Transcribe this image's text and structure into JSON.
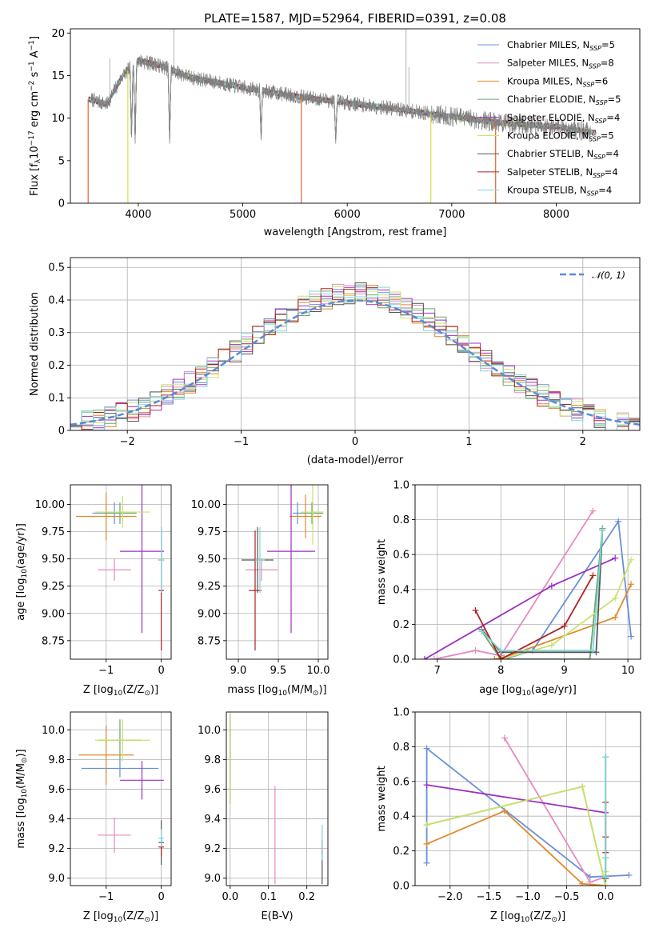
{
  "figure": {
    "title": "PLATE=1587, MJD=52964, FIBERID=0391, z=0.08"
  },
  "colors": {
    "Chabrier MILES": "#6a8fd8",
    "Salpeter MILES": "#e58ac0",
    "Kroupa MILES": "#e08a2a",
    "Chabrier ELODIE": "#6aa66a",
    "Salpeter ELODIE": "#9b30c0",
    "Kroupa ELODIE": "#c9e36a",
    "Chabrier STELIB": "#555555",
    "Salpeter STELIB": "#b22020",
    "Kroupa STELIB": "#80d8d8",
    "spectrum_main": "#808080",
    "spectrum_orange": "#e0662a",
    "spectrum_yellow": "#d8e04a",
    "normal_curve": "#5a8ad8"
  },
  "chart_data": [
    {
      "id": "spectrum",
      "type": "line",
      "xlabel": "wavelength [Angstrom, rest frame]",
      "ylabel_parts": [
        "Flux [f",
        "λ",
        "10",
        "−17",
        " erg cm",
        "−2",
        " s",
        "−1",
        " A",
        "−1",
        "]"
      ],
      "xlim": [
        3350,
        8800
      ],
      "ylim": [
        0,
        20.5
      ],
      "xticks": [
        4000,
        5000,
        6000,
        7000,
        8000
      ],
      "yticks": [
        0,
        5,
        10,
        15,
        20
      ],
      "grid": false,
      "legend_position": "top-right",
      "legend": [
        {
          "name": "Chabrier MILES",
          "nssp": "5"
        },
        {
          "name": "Salpeter MILES",
          "nssp": "8"
        },
        {
          "name": "Kroupa MILES",
          "nssp": "6"
        },
        {
          "name": "Chabrier ELODIE",
          "nssp": "5"
        },
        {
          "name": "Salpeter ELODIE",
          "nssp": "4"
        },
        {
          "name": "Kroupa ELODIE",
          "nssp": "5"
        },
        {
          "name": "Chabrier STELIB",
          "nssp": "4"
        },
        {
          "name": "Salpeter STELIB",
          "nssp": "4"
        },
        {
          "name": "Kroupa STELIB",
          "nssp": "4"
        }
      ],
      "continuum_knots": [
        [
          3550,
          12.2
        ],
        [
          3700,
          11.6
        ],
        [
          3850,
          15.0
        ],
        [
          4000,
          16.8
        ],
        [
          4200,
          16.2
        ],
        [
          4500,
          14.8
        ],
        [
          5000,
          13.6
        ],
        [
          5500,
          12.6
        ],
        [
          6000,
          11.8
        ],
        [
          6500,
          11.0
        ],
        [
          7000,
          10.2
        ],
        [
          7500,
          9.4
        ],
        [
          8000,
          9.0
        ],
        [
          8400,
          8.2
        ]
      ],
      "models_range": [
        3520,
        8380
      ],
      "observed_range": [
        3550,
        8330
      ],
      "model_dropouts": [
        3520,
        3900,
        5560,
        6800,
        7420
      ],
      "emission_lines": [
        [
          4340,
          20.5
        ],
        [
          6563,
          20.5
        ],
        [
          6590,
          16.0
        ],
        [
          3727,
          17.0
        ]
      ],
      "absorption_features": [
        [
          3935,
          7.2
        ],
        [
          3970,
          8.0
        ],
        [
          4300,
          11.0
        ],
        [
          5175,
          11.5
        ],
        [
          5890,
          10.2
        ]
      ]
    },
    {
      "id": "residual_histogram",
      "type": "line",
      "xlabel": "(data-model)/error",
      "ylabel": "Normed distribution",
      "xlim": [
        -2.5,
        2.5
      ],
      "ylim": [
        0,
        0.53
      ],
      "xticks": [
        -2,
        -1,
        0,
        1,
        2
      ],
      "yticks": [
        0.0,
        0.1,
        0.2,
        0.3,
        0.4,
        0.5
      ],
      "grid": true,
      "legend_position": "top-right",
      "legend": [
        "𝒩(0, 1)"
      ],
      "bin_width": 0.1
    },
    {
      "id": "age_vs_Z",
      "type": "scatter",
      "xlabel_parts": [
        "Z [log",
        "10",
        "(Z/Z",
        "⊙",
        ")]"
      ],
      "ylabel_parts": [
        "age  [log",
        "10",
        "(age/yr)]"
      ],
      "xlim": [
        -1.65,
        0.18
      ],
      "ylim": [
        8.58,
        10.18
      ],
      "xticks": [
        -1,
        0
      ],
      "yticks": [
        8.75,
        9.0,
        9.25,
        9.5,
        9.75,
        10.0
      ],
      "grid": true,
      "points": [
        {
          "model": "Chabrier MILES",
          "x": -0.85,
          "y": 9.92,
          "xerr": 0.4,
          "yerr": 0.1
        },
        {
          "model": "Salpeter MILES",
          "x": -0.85,
          "y": 9.4,
          "xerr": 0.3,
          "yerr": 0.1
        },
        {
          "model": "Kroupa MILES",
          "x": -1.0,
          "y": 9.89,
          "xerr": 0.55,
          "yerr": 0.22
        },
        {
          "model": "Chabrier ELODIE",
          "x": -0.75,
          "y": 9.92,
          "xerr": 0.3,
          "yerr": 0.1
        },
        {
          "model": "Salpeter ELODIE",
          "x": -0.35,
          "y": 9.57,
          "xerr": 0.4,
          "yerr": 0.75
        },
        {
          "model": "Kroupa ELODIE",
          "x": -0.7,
          "y": 9.93,
          "xerr": 0.5,
          "yerr": 0.15
        },
        {
          "model": "Chabrier STELIB",
          "x": 0.0,
          "y": 9.49,
          "xerr": 0.05,
          "yerr": 0.3
        },
        {
          "model": "Salpeter STELIB",
          "x": 0.0,
          "y": 9.21,
          "xerr": 0.05,
          "yerr": 0.55
        },
        {
          "model": "Kroupa STELIB",
          "x": 0.0,
          "y": 9.49,
          "xerr": 0.06,
          "yerr": 0.3
        }
      ]
    },
    {
      "id": "age_vs_mass",
      "type": "scatter",
      "xlabel_parts": [
        "mass [log",
        "10",
        "(M/M",
        "⊙",
        ")]"
      ],
      "xlim": [
        8.85,
        10.12
      ],
      "ylim": [
        8.58,
        10.18
      ],
      "xticks": [
        9.0,
        9.5,
        10.0
      ],
      "yticks": [
        8.75,
        9.0,
        9.25,
        9.5,
        9.75,
        10.0
      ],
      "grid": true,
      "points": [
        {
          "model": "Chabrier MILES",
          "x": 9.74,
          "y": 9.92,
          "xerr": 0.06,
          "yerr": 0.1
        },
        {
          "model": "Salpeter MILES",
          "x": 9.29,
          "y": 9.4,
          "xerr": 0.2,
          "yerr": 0.1
        },
        {
          "model": "Kroupa MILES",
          "x": 9.84,
          "y": 9.89,
          "xerr": 0.2,
          "yerr": 0.2
        },
        {
          "model": "Chabrier ELODIE",
          "x": 9.92,
          "y": 9.92,
          "xerr": 0.14,
          "yerr": 0.1
        },
        {
          "model": "Salpeter ELODIE",
          "x": 9.66,
          "y": 9.57,
          "xerr": 0.3,
          "yerr": 0.75
        },
        {
          "model": "Kroupa ELODIE",
          "x": 9.93,
          "y": 9.93,
          "xerr": 0.14,
          "yerr": 0.3
        },
        {
          "model": "Chabrier STELIB",
          "x": 9.24,
          "y": 9.49,
          "xerr": 0.2,
          "yerr": 0.3
        },
        {
          "model": "Salpeter STELIB",
          "x": 9.21,
          "y": 9.21,
          "xerr": 0.08,
          "yerr": 0.55
        },
        {
          "model": "Kroupa STELIB",
          "x": 9.27,
          "y": 9.49,
          "xerr": 0.06,
          "yerr": 0.3
        }
      ]
    },
    {
      "id": "weight_vs_age",
      "type": "line",
      "xlabel_parts": [
        "age  [log",
        "10",
        "(age/yr)]"
      ],
      "ylabel": "mass weight",
      "xlim": [
        6.65,
        10.2
      ],
      "ylim": [
        0,
        1.0
      ],
      "xticks": [
        7,
        8,
        9,
        10
      ],
      "yticks": [
        0.0,
        0.2,
        0.4,
        0.6,
        0.8,
        1.0
      ],
      "grid": true,
      "series": [
        {
          "model": "Chabrier MILES",
          "x": [
            8.05,
            8.5,
            9.85,
            10.05
          ],
          "y": [
            0.0,
            0.05,
            0.79,
            0.13
          ]
        },
        {
          "model": "Salpeter MILES",
          "x": [
            6.95,
            7.6,
            8.0,
            9.45
          ],
          "y": [
            0.0,
            0.05,
            0.02,
            0.85
          ]
        },
        {
          "model": "Kroupa MILES",
          "x": [
            7.9,
            8.05,
            9.8,
            10.05
          ],
          "y": [
            0.0,
            0.01,
            0.24,
            0.43
          ]
        },
        {
          "model": "Chabrier ELODIE",
          "x": [
            7.7,
            8.0,
            9.4,
            9.6
          ],
          "y": [
            0.16,
            0.0,
            0.0,
            0.75
          ]
        },
        {
          "model": "Salpeter ELODIE",
          "x": [
            6.8,
            8.8,
            9.8
          ],
          "y": [
            0.0,
            0.42,
            0.58
          ]
        },
        {
          "model": "Kroupa ELODIE",
          "x": [
            8.0,
            8.8,
            9.8,
            10.05
          ],
          "y": [
            0.0,
            0.08,
            0.35,
            0.57
          ]
        },
        {
          "model": "Chabrier STELIB",
          "x": [
            7.7,
            8.0,
            9.5,
            9.6
          ],
          "y": [
            0.17,
            0.04,
            0.04,
            0.74
          ]
        },
        {
          "model": "Salpeter STELIB",
          "x": [
            7.6,
            8.0,
            9.0,
            9.45
          ],
          "y": [
            0.28,
            0.0,
            0.19,
            0.48
          ]
        },
        {
          "model": "Kroupa STELIB",
          "x": [
            7.7,
            8.0,
            9.45,
            9.6
          ],
          "y": [
            0.16,
            0.05,
            0.05,
            0.74
          ]
        }
      ]
    },
    {
      "id": "mass_vs_Z",
      "type": "scatter",
      "xlabel_parts": [
        "Z [log",
        "10",
        "(Z/Z",
        "⊙",
        ")]"
      ],
      "ylabel_parts": [
        "mass [log",
        "10",
        "(M/M",
        "⊙",
        ")]"
      ],
      "xlim": [
        -1.65,
        0.18
      ],
      "ylim": [
        8.95,
        10.12
      ],
      "xticks": [
        -1,
        0
      ],
      "yticks": [
        9.0,
        9.2,
        9.4,
        9.6,
        9.8,
        10.0
      ],
      "grid": true,
      "points": [
        {
          "model": "Chabrier MILES",
          "x": -0.75,
          "y": 9.74,
          "xerr": 0.7,
          "yerr": 0.06
        },
        {
          "model": "Salpeter MILES",
          "x": -0.85,
          "y": 9.29,
          "xerr": 0.3,
          "yerr": 0.12
        },
        {
          "model": "Kroupa MILES",
          "x": -1.0,
          "y": 9.83,
          "xerr": 0.5,
          "yerr": 0.2
        },
        {
          "model": "Chabrier ELODIE",
          "x": -0.75,
          "y": 9.93,
          "xerr": 0.38,
          "yerr": 0.14
        },
        {
          "model": "Salpeter ELODIE",
          "x": -0.35,
          "y": 9.66,
          "xerr": 0.4,
          "yerr": 0.13
        },
        {
          "model": "Kroupa ELODIE",
          "x": -0.7,
          "y": 9.93,
          "xerr": 0.5,
          "yerr": 0.14
        },
        {
          "model": "Chabrier STELIB",
          "x": 0.0,
          "y": 9.24,
          "xerr": 0.05,
          "yerr": 0.15
        },
        {
          "model": "Salpeter STELIB",
          "x": 0.0,
          "y": 9.21,
          "xerr": 0.05,
          "yerr": 0.06
        },
        {
          "model": "Kroupa STELIB",
          "x": 0.0,
          "y": 9.27,
          "xerr": 0.05,
          "yerr": 0.06
        }
      ]
    },
    {
      "id": "mass_vs_ebv",
      "type": "scatter",
      "xlabel": "E(B-V)",
      "xlim": [
        -0.01,
        0.255
      ],
      "ylim": [
        8.95,
        10.12
      ],
      "xticks": [
        0.0,
        0.1,
        0.2
      ],
      "yticks": [
        9.0,
        9.2,
        9.4,
        9.6,
        9.8,
        10.0
      ],
      "grid": true,
      "points": [
        {
          "model": "Chabrier MILES",
          "x": 0.0,
          "y": 9.74,
          "xerr": 0.0,
          "yerr": 0.06
        },
        {
          "model": "Salpeter MILES",
          "x": 0.117,
          "y": 9.29,
          "xerr": 0.0,
          "yerr": 0.33
        },
        {
          "model": "Kroupa MILES",
          "x": 0.0,
          "y": 9.83,
          "xerr": 0.0,
          "yerr": 0.2
        },
        {
          "model": "Chabrier ELODIE",
          "x": 0.0,
          "y": 9.93,
          "xerr": 0.0,
          "yerr": 0.14
        },
        {
          "model": "Salpeter ELODIE",
          "x": 0.0,
          "y": 9.8,
          "xerr": 0.0,
          "yerr": 0.3
        },
        {
          "model": "Kroupa ELODIE",
          "x": 0.0,
          "y": 9.8,
          "xerr": 0.0,
          "yerr": 0.3
        },
        {
          "model": "Chabrier STELIB",
          "x": 0.24,
          "y": 9.08,
          "xerr": 0.0,
          "yerr": 0.12
        },
        {
          "model": "Salpeter STELIB",
          "x": 0.24,
          "y": 9.21,
          "xerr": 0.0,
          "yerr": 0.05
        },
        {
          "model": "Kroupa STELIB",
          "x": 0.24,
          "y": 9.24,
          "xerr": 0.0,
          "yerr": 0.12
        }
      ]
    },
    {
      "id": "weight_vs_Z",
      "type": "line",
      "xlabel_parts": [
        "Z [log",
        "10",
        "(Z/Z",
        "⊙",
        ")]"
      ],
      "ylabel": "mass weight",
      "xlim": [
        -2.45,
        0.45
      ],
      "ylim": [
        0,
        1.0
      ],
      "xticks": [
        -2.0,
        -1.5,
        -1.0,
        -0.5,
        0.0
      ],
      "yticks": [
        0.0,
        0.2,
        0.4,
        0.6,
        0.8,
        1.0
      ],
      "grid": true,
      "series": [
        {
          "model": "Chabrier MILES",
          "x": [
            -2.3,
            -2.3,
            -0.2,
            0.3
          ],
          "y": [
            0.13,
            0.79,
            0.05,
            0.06
          ]
        },
        {
          "model": "Salpeter MILES",
          "x": [
            -1.3,
            -0.2,
            0.0
          ],
          "y": [
            0.85,
            0.02,
            0.05
          ]
        },
        {
          "model": "Kroupa MILES",
          "x": [
            -2.3,
            -1.3,
            -0.3,
            0.0
          ],
          "y": [
            0.24,
            0.43,
            0.01,
            0.0
          ]
        },
        {
          "model": "Chabrier ELODIE",
          "x": [
            -2.3,
            -0.3,
            0.0,
            0.0
          ],
          "y": [
            0.35,
            0.57,
            0.0,
            0.16
          ]
        },
        {
          "model": "Salpeter ELODIE",
          "x": [
            -2.3,
            0.0
          ],
          "y": [
            0.58,
            0.42
          ]
        },
        {
          "model": "Kroupa ELODIE",
          "x": [
            -2.3,
            -0.3,
            0.0,
            0.0
          ],
          "y": [
            0.35,
            0.57,
            0.0,
            0.08
          ]
        },
        {
          "model": "Chabrier STELIB",
          "x": [
            0.0,
            0.0
          ],
          "y": [
            0.04,
            0.74
          ]
        },
        {
          "model": "Salpeter STELIB",
          "x": [
            0.0,
            0.0,
            0.0
          ],
          "y": [
            0.48,
            0.28,
            0.19
          ]
        },
        {
          "model": "Kroupa STELIB",
          "x": [
            0.0,
            0.0,
            0.0
          ],
          "y": [
            0.05,
            0.16,
            0.74
          ]
        }
      ]
    }
  ]
}
